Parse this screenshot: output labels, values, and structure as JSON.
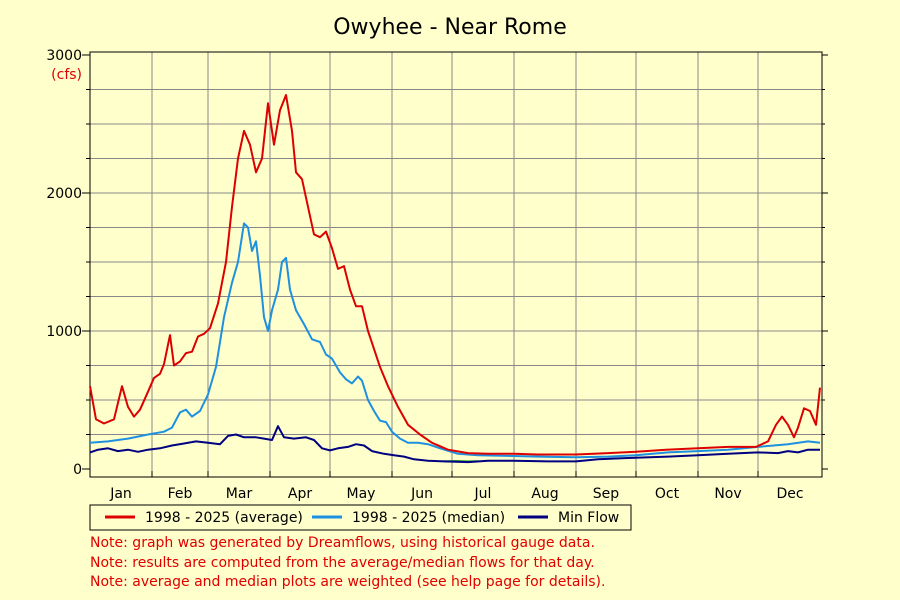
{
  "chart_data": {
    "type": "line",
    "title": "Owyhee - Near Rome",
    "y_unit_label": "(cfs)",
    "ylim": [
      0,
      3000
    ],
    "y_ticks": [
      0,
      1000,
      2000,
      3000
    ],
    "x_days": 366,
    "months": [
      "Jan",
      "Feb",
      "Mar",
      "Apr",
      "May",
      "Jun",
      "Jul",
      "Aug",
      "Sep",
      "Oct",
      "Nov",
      "Dec"
    ],
    "month_start_days": [
      1,
      32,
      60,
      91,
      121,
      152,
      182,
      213,
      244,
      274,
      305,
      335
    ],
    "grid": true,
    "legend_position": "bottom",
    "series": [
      {
        "name": "1998 - 2025 (average)",
        "color": "#dd0000",
        "points": [
          [
            1,
            600
          ],
          [
            4,
            360
          ],
          [
            8,
            330
          ],
          [
            13,
            360
          ],
          [
            17,
            600
          ],
          [
            20,
            450
          ],
          [
            23,
            380
          ],
          [
            26,
            430
          ],
          [
            30,
            560
          ],
          [
            33,
            660
          ],
          [
            36,
            690
          ],
          [
            38,
            760
          ],
          [
            41,
            970
          ],
          [
            43,
            750
          ],
          [
            46,
            780
          ],
          [
            49,
            840
          ],
          [
            52,
            850
          ],
          [
            55,
            960
          ],
          [
            58,
            980
          ],
          [
            61,
            1020
          ],
          [
            65,
            1200
          ],
          [
            69,
            1500
          ],
          [
            72,
            1900
          ],
          [
            75,
            2250
          ],
          [
            78,
            2450
          ],
          [
            81,
            2350
          ],
          [
            84,
            2150
          ],
          [
            87,
            2250
          ],
          [
            90,
            2650
          ],
          [
            93,
            2350
          ],
          [
            96,
            2600
          ],
          [
            99,
            2710
          ],
          [
            102,
            2450
          ],
          [
            104,
            2150
          ],
          [
            107,
            2100
          ],
          [
            110,
            1900
          ],
          [
            113,
            1700
          ],
          [
            116,
            1680
          ],
          [
            119,
            1720
          ],
          [
            122,
            1600
          ],
          [
            125,
            1450
          ],
          [
            128,
            1470
          ],
          [
            131,
            1300
          ],
          [
            134,
            1180
          ],
          [
            137,
            1180
          ],
          [
            140,
            1000
          ],
          [
            143,
            870
          ],
          [
            146,
            740
          ],
          [
            150,
            600
          ],
          [
            155,
            450
          ],
          [
            160,
            320
          ],
          [
            166,
            250
          ],
          [
            172,
            190
          ],
          [
            180,
            140
          ],
          [
            190,
            115
          ],
          [
            200,
            110
          ],
          [
            213,
            110
          ],
          [
            225,
            105
          ],
          [
            244,
            105
          ],
          [
            260,
            115
          ],
          [
            274,
            125
          ],
          [
            289,
            140
          ],
          [
            305,
            150
          ],
          [
            320,
            160
          ],
          [
            334,
            160
          ],
          [
            340,
            200
          ],
          [
            344,
            320
          ],
          [
            347,
            380
          ],
          [
            350,
            320
          ],
          [
            353,
            230
          ],
          [
            355,
            300
          ],
          [
            358,
            440
          ],
          [
            361,
            420
          ],
          [
            364,
            320
          ],
          [
            366,
            590
          ]
        ]
      },
      {
        "name": "1998 - 2025 (median)",
        "color": "#1e90e0",
        "points": [
          [
            1,
            190
          ],
          [
            10,
            200
          ],
          [
            20,
            220
          ],
          [
            30,
            250
          ],
          [
            38,
            270
          ],
          [
            42,
            300
          ],
          [
            46,
            410
          ],
          [
            49,
            430
          ],
          [
            52,
            380
          ],
          [
            56,
            420
          ],
          [
            60,
            540
          ],
          [
            64,
            740
          ],
          [
            68,
            1100
          ],
          [
            72,
            1350
          ],
          [
            75,
            1500
          ],
          [
            78,
            1780
          ],
          [
            80,
            1750
          ],
          [
            82,
            1580
          ],
          [
            84,
            1650
          ],
          [
            86,
            1400
          ],
          [
            88,
            1100
          ],
          [
            90,
            1000
          ],
          [
            92,
            1150
          ],
          [
            95,
            1300
          ],
          [
            97,
            1500
          ],
          [
            99,
            1530
          ],
          [
            101,
            1300
          ],
          [
            104,
            1150
          ],
          [
            108,
            1050
          ],
          [
            112,
            940
          ],
          [
            116,
            920
          ],
          [
            119,
            830
          ],
          [
            122,
            800
          ],
          [
            126,
            700
          ],
          [
            129,
            650
          ],
          [
            132,
            620
          ],
          [
            135,
            670
          ],
          [
            137,
            640
          ],
          [
            140,
            500
          ],
          [
            143,
            420
          ],
          [
            146,
            350
          ],
          [
            149,
            340
          ],
          [
            152,
            270
          ],
          [
            156,
            220
          ],
          [
            160,
            190
          ],
          [
            165,
            190
          ],
          [
            170,
            180
          ],
          [
            176,
            150
          ],
          [
            185,
            110
          ],
          [
            195,
            100
          ],
          [
            210,
            95
          ],
          [
            225,
            90
          ],
          [
            244,
            85
          ],
          [
            260,
            90
          ],
          [
            274,
            100
          ],
          [
            290,
            120
          ],
          [
            305,
            130
          ],
          [
            320,
            140
          ],
          [
            335,
            160
          ],
          [
            350,
            180
          ],
          [
            360,
            200
          ],
          [
            366,
            190
          ]
        ]
      },
      {
        "name": "Min Flow",
        "color": "#000080",
        "points": [
          [
            1,
            120
          ],
          [
            5,
            140
          ],
          [
            10,
            150
          ],
          [
            15,
            130
          ],
          [
            20,
            140
          ],
          [
            25,
            125
          ],
          [
            30,
            140
          ],
          [
            36,
            150
          ],
          [
            42,
            170
          ],
          [
            48,
            185
          ],
          [
            54,
            200
          ],
          [
            60,
            190
          ],
          [
            66,
            180
          ],
          [
            70,
            240
          ],
          [
            74,
            250
          ],
          [
            78,
            230
          ],
          [
            84,
            230
          ],
          [
            88,
            220
          ],
          [
            92,
            210
          ],
          [
            95,
            310
          ],
          [
            98,
            230
          ],
          [
            103,
            220
          ],
          [
            109,
            230
          ],
          [
            113,
            210
          ],
          [
            117,
            150
          ],
          [
            121,
            135
          ],
          [
            125,
            150
          ],
          [
            130,
            160
          ],
          [
            134,
            180
          ],
          [
            138,
            170
          ],
          [
            142,
            130
          ],
          [
            148,
            110
          ],
          [
            153,
            100
          ],
          [
            158,
            90
          ],
          [
            163,
            70
          ],
          [
            170,
            60
          ],
          [
            178,
            55
          ],
          [
            190,
            50
          ],
          [
            200,
            60
          ],
          [
            213,
            60
          ],
          [
            230,
            55
          ],
          [
            244,
            55
          ],
          [
            255,
            70
          ],
          [
            270,
            80
          ],
          [
            290,
            90
          ],
          [
            305,
            100
          ],
          [
            320,
            110
          ],
          [
            335,
            120
          ],
          [
            345,
            115
          ],
          [
            350,
            130
          ],
          [
            355,
            120
          ],
          [
            360,
            140
          ],
          [
            366,
            140
          ]
        ]
      },
      {
        "name": "",
        "color": "#22aa22",
        "points": [
          [
            178,
            55
          ],
          [
            184,
            58
          ],
          [
            190,
            55
          ],
          [
            195,
            56
          ]
        ]
      }
    ]
  },
  "notes": [
    "Note: graph was generated by Dreamflows, using historical gauge data.",
    "Note: results are computed from the average/median flows for that day.",
    "Note: average and median plots are weighted (see help page for details)."
  ]
}
